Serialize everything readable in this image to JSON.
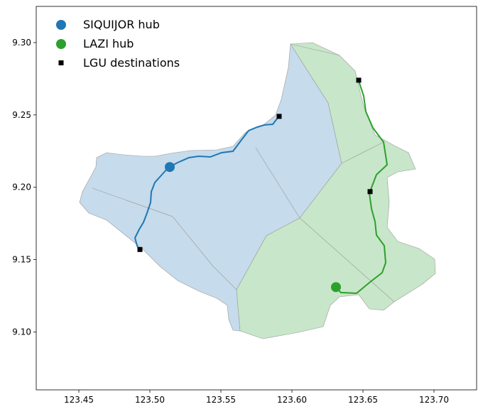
{
  "chart_data": {
    "type": "map",
    "xlim": [
      123.42,
      123.73
    ],
    "ylim": [
      9.06,
      9.325
    ],
    "x_ticks": [
      "123.45",
      "123.50",
      "123.55",
      "123.60",
      "123.65",
      "123.70"
    ],
    "y_ticks": [
      "9.10",
      "9.15",
      "9.20",
      "9.25",
      "9.30"
    ],
    "legend": {
      "placement": "upper-left",
      "entries": [
        {
          "label": "SIQUIJOR hub",
          "color": "#1f77b4",
          "marker": "circle"
        },
        {
          "label": "LAZI hub",
          "color": "#2ca02c",
          "marker": "circle"
        },
        {
          "label": "LGU destinations",
          "color": "#000000",
          "marker": "square"
        }
      ]
    },
    "hubs": [
      {
        "name": "SIQUIJOR",
        "lon": 123.514,
        "lat": 9.214,
        "color": "#1f77b4"
      },
      {
        "name": "LAZI",
        "lon": 123.631,
        "lat": 9.131,
        "color": "#2ca02c"
      }
    ],
    "destinations": [
      {
        "lon": 123.591,
        "lat": 9.249
      },
      {
        "lon": 123.647,
        "lat": 9.274
      },
      {
        "lon": 123.655,
        "lat": 9.197
      },
      {
        "lon": 123.493,
        "lat": 9.157
      }
    ],
    "fill_colors": {
      "blue": "#c6dbeb",
      "green": "#c8e6c9",
      "border": "#9a9a9a"
    }
  }
}
